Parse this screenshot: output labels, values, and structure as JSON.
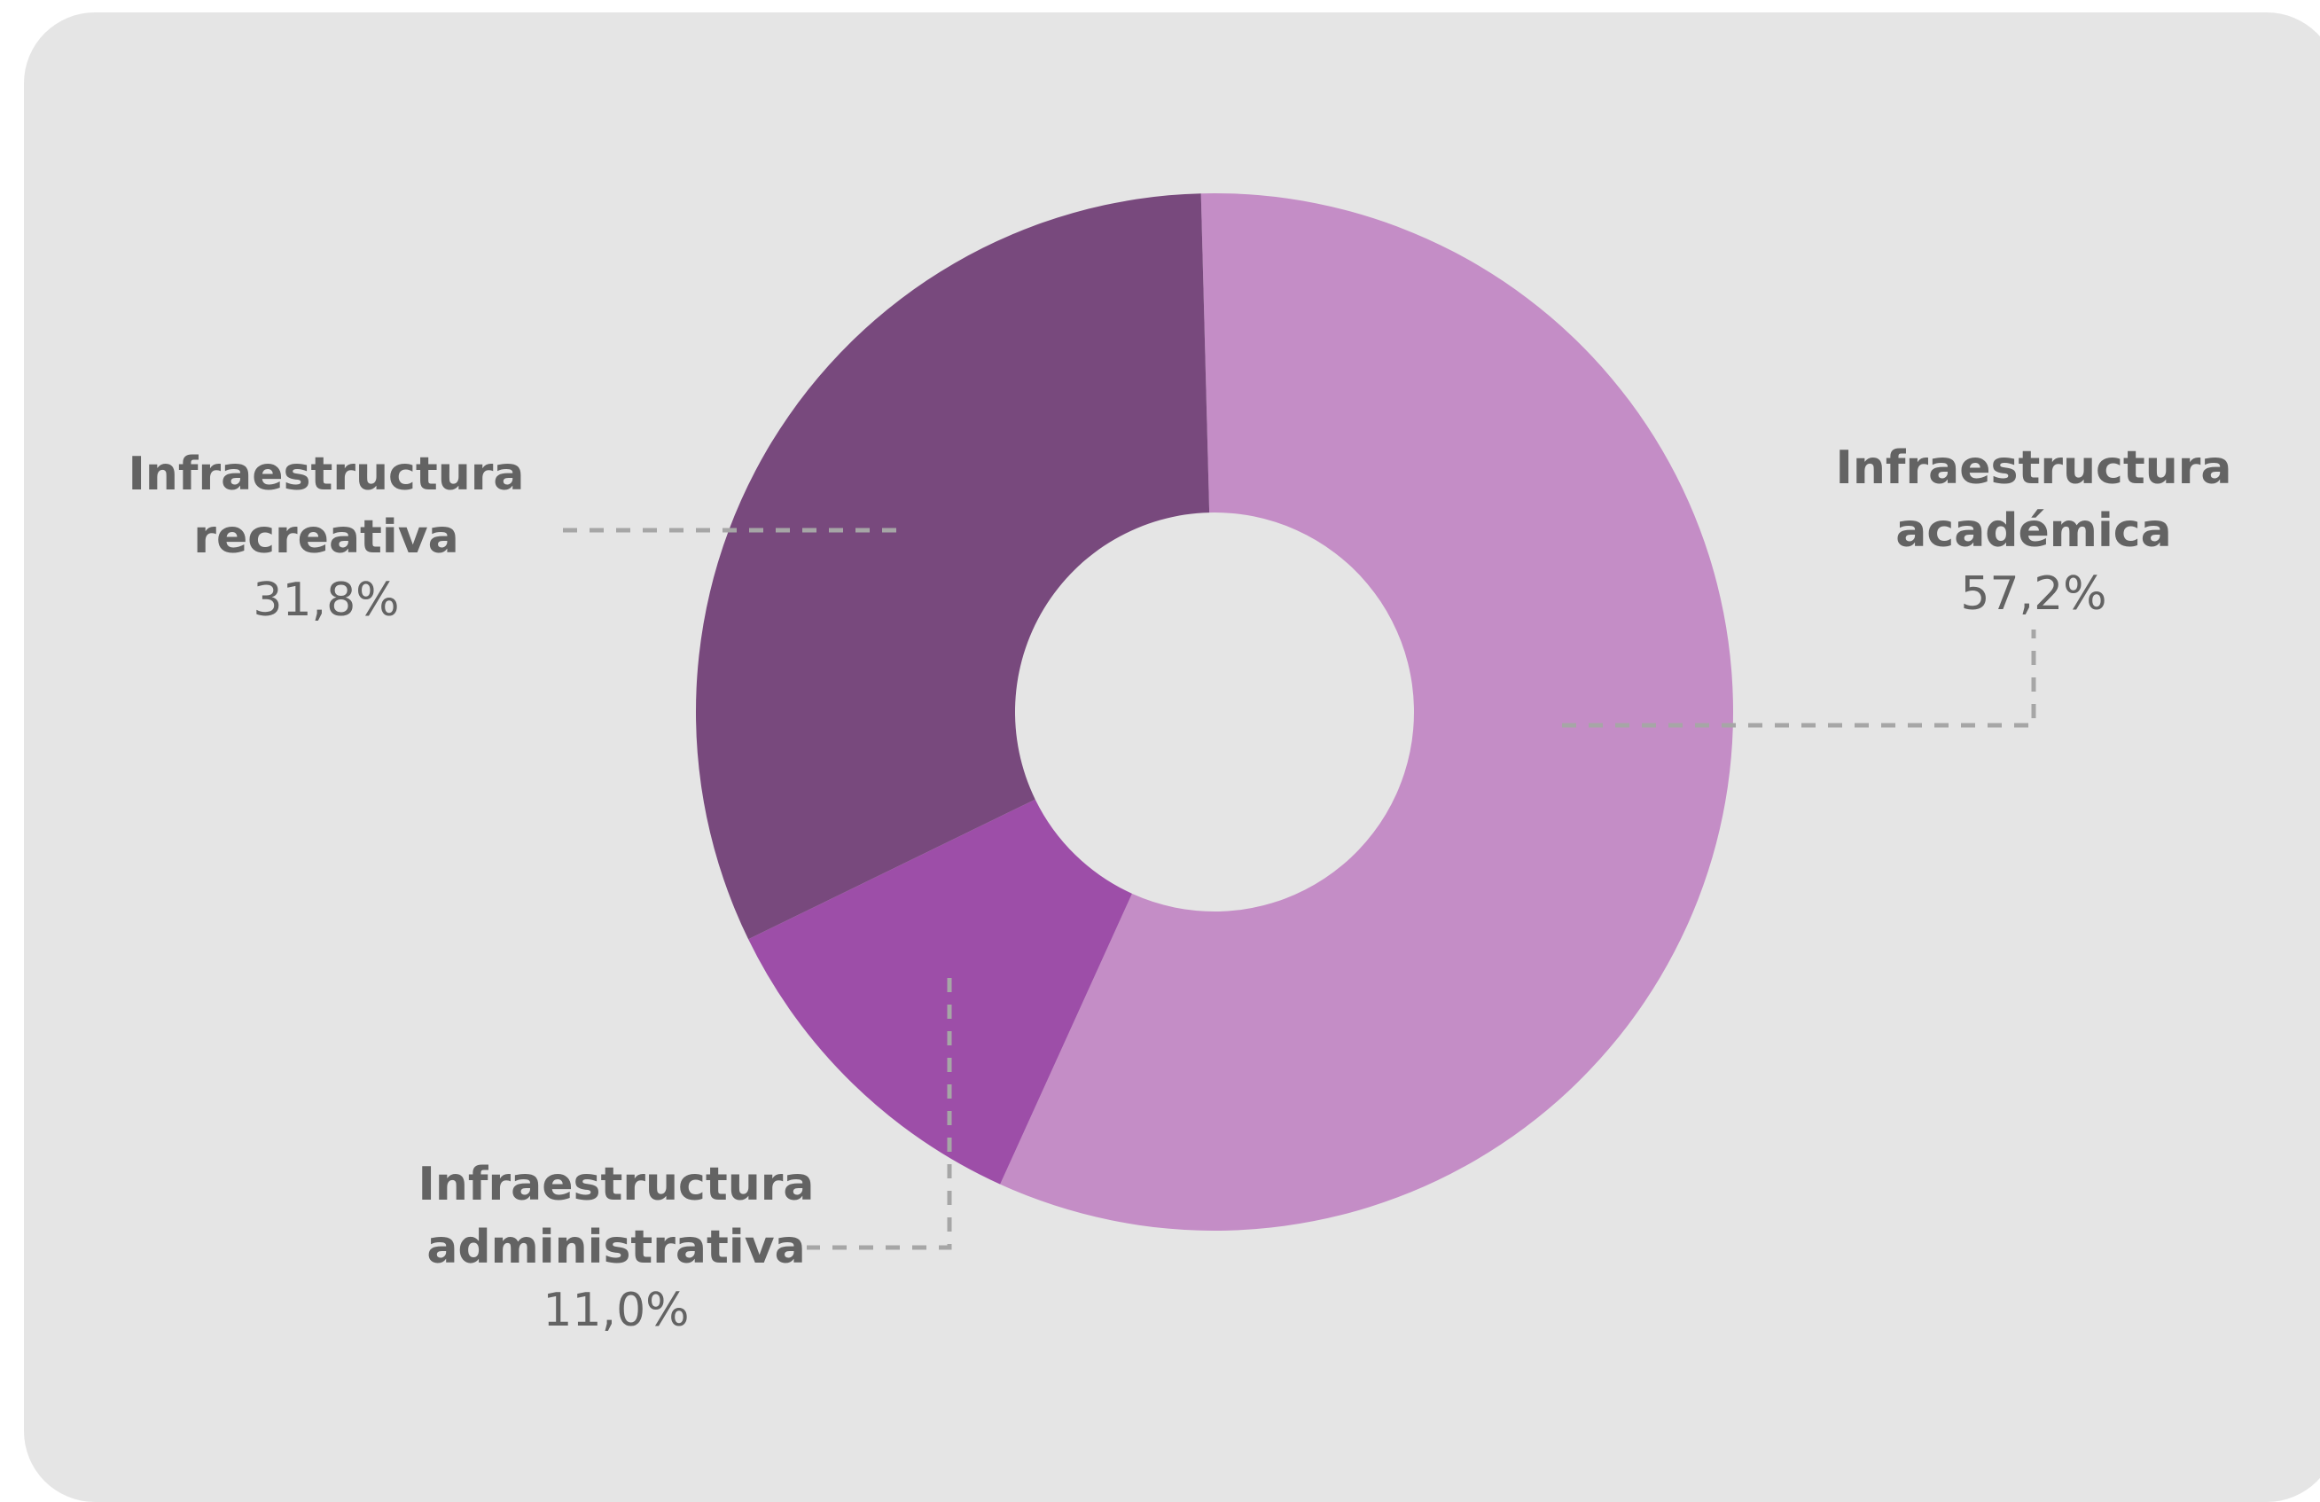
{
  "chart_data": {
    "type": "pie",
    "variant": "donut",
    "title": "",
    "slices": [
      {
        "label_lines": [
          "Infraestructura",
          "académica"
        ],
        "value": 57.2,
        "display": "57,2%",
        "color": "#c48dc6"
      },
      {
        "label_lines": [
          "Infraestructura",
          "administrativa"
        ],
        "value": 11.0,
        "display": "11,0%",
        "color": "#9d4ea8"
      },
      {
        "label_lines": [
          "Infraestructura",
          "recreativa"
        ],
        "value": 31.8,
        "display": "31,8%",
        "color": "#78497d"
      }
    ],
    "background": "#e5e5e5",
    "legend": "none (direct labels with dashed leaders)"
  }
}
